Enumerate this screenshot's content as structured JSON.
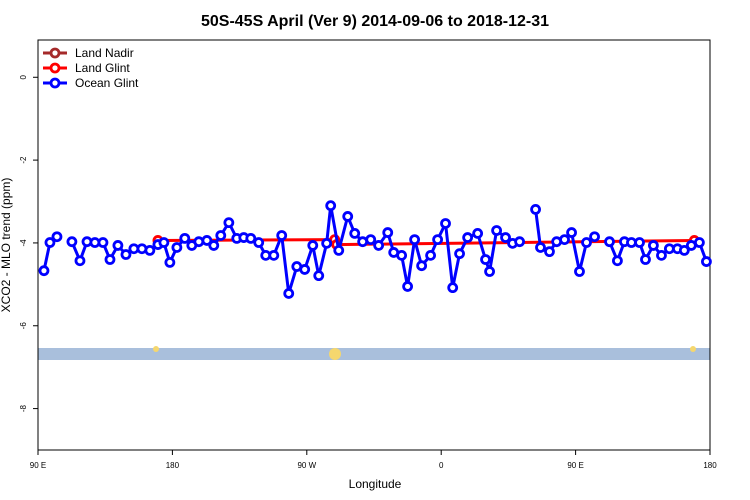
{
  "chart_data": {
    "type": "line",
    "title": "50S-45S April (Ver 9)   2014-09-06 to 2018-12-31",
    "xlabel": "Longitude",
    "ylabel": "XCO2 - MLO trend (ppm)",
    "xlim": [
      90,
      540
    ],
    "ylim": [
      -9,
      0.9
    ],
    "xticks": [
      {
        "value": 90,
        "label": "90 E"
      },
      180,
      {
        "value": 270,
        "label": "90 W"
      },
      {
        "value": 360,
        "label": "0"
      },
      {
        "value": 450,
        "label": "90 E"
      },
      {
        "value": 540,
        "label": "180"
      }
    ],
    "yticks": [
      0,
      -2,
      -4,
      -6,
      -8
    ],
    "legend": "top-left",
    "series": [
      {
        "name": "Land Nadir",
        "color": "#a52a2a",
        "x": [],
        "values": []
      },
      {
        "name": "Land Glint",
        "color": "#ff0000",
        "x": [
          170.3,
          288.7,
          290.0,
          529.5
        ],
        "values": [
          -3.94,
          -3.92,
          -4.04,
          -3.94
        ]
      },
      {
        "name": "Ocean Glint",
        "color": "#0000ff",
        "x": [
          94.0,
          98.0,
          102.7,
          108,
          112.7,
          118.1,
          122.8,
          128.1,
          133.5,
          138.2,
          143.5,
          148.9,
          154.2,
          159.6,
          164.9,
          170.3,
          174.3,
          178.3,
          183.0,
          188.3,
          193.0,
          197.7,
          203.1,
          207.7,
          212.4,
          217.8,
          223.1,
          227.8,
          232.5,
          237.8,
          242.5,
          247.9,
          253.2,
          257.9,
          263.3,
          268.6,
          274.0,
          278.0,
          283.3,
          286.0,
          291.4,
          297.4,
          302.1,
          307.4,
          312.8,
          318.1,
          324.2,
          328.2,
          333.5,
          337.5,
          342.2,
          346.9,
          352.9,
          357.6,
          362.9,
          367.7,
          372.3,
          377.7,
          384.4,
          389.7,
          392.4,
          397.1,
          403.1,
          407.8,
          412.5,
          418,
          423.2,
          426.5,
          432.5,
          437.3,
          442.6,
          447.3,
          452.6,
          457.3,
          462.7,
          467,
          472.7,
          478.0,
          482.7,
          487.4,
          492.8,
          496.8,
          502.1,
          507.5,
          512.8,
          518.2,
          522.8,
          527.5,
          532.9,
          537.6
        ],
        "values": [
          -4.67,
          -3.99,
          -3.85,
          null,
          -3.97,
          -4.43,
          -3.97,
          -3.99,
          -3.99,
          -4.4,
          -4.06,
          -4.28,
          -4.14,
          -4.14,
          -4.18,
          -4.04,
          -3.99,
          -4.47,
          -4.11,
          -3.89,
          -4.06,
          -3.97,
          -3.94,
          -4.06,
          -3.82,
          -3.51,
          -3.89,
          -3.87,
          -3.89,
          -3.99,
          -4.3,
          -4.3,
          -3.82,
          -5.22,
          -4.57,
          -4.64,
          -4.06,
          -4.79,
          -4.01,
          -3.1,
          -4.18,
          -3.36,
          -3.77,
          -3.97,
          -3.92,
          -4.06,
          -3.75,
          -4.23,
          -4.3,
          -5.05,
          -3.92,
          -4.55,
          -4.3,
          -3.92,
          -3.53,
          -5.08,
          -4.26,
          -3.87,
          -3.77,
          -4.4,
          -4.69,
          -3.7,
          -3.87,
          -4.01,
          -3.97,
          null,
          -3.19,
          -4.11,
          -4.21,
          -3.97,
          -3.92,
          -3.75,
          -4.69,
          -3.99,
          -3.85,
          null,
          -3.97,
          -4.43,
          -3.97,
          -3.99,
          -3.99,
          -4.4,
          -4.06,
          -4.3,
          -4.14,
          -4.14,
          -4.18,
          -4.06,
          -3.99,
          -4.45
        ]
      }
    ]
  }
}
